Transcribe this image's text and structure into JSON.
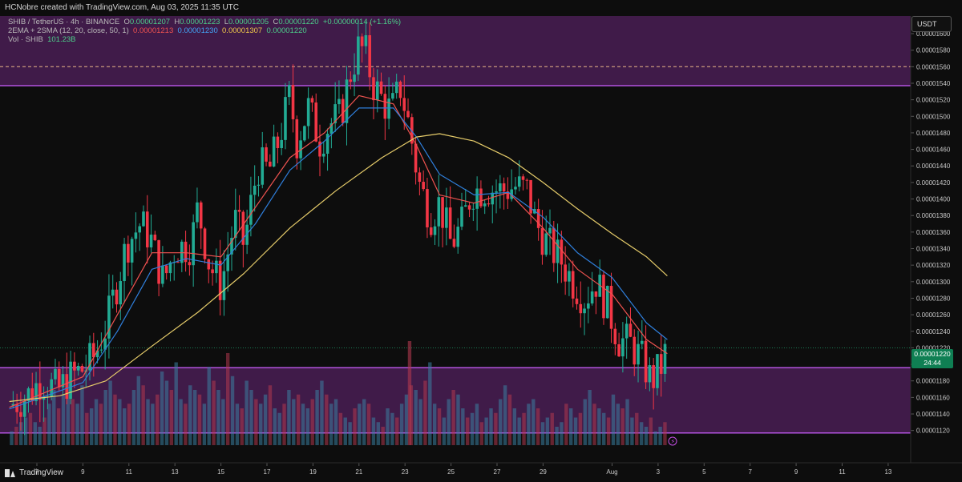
{
  "header": {
    "attribution": "HCNobre created with TradingView.com, Aug 03, 2025 11:35 UTC"
  },
  "legend": {
    "symbol": "SHIB / TetherUS · 4h · BINANCE",
    "o_label": "O",
    "o_value": "0.00001207",
    "h_label": "H",
    "h_value": "0.00001223",
    "l_label": "L",
    "l_value": "0.00001205",
    "c_label": "C",
    "c_value": "0.00001220",
    "change": "+0.00000014 (+1.16%)",
    "indicator": "2EMA + 2SMA (12, 20, close, 50, 1)",
    "ema12": "0.00001213",
    "ema20": "0.00001230",
    "sma50": "0.00001307",
    "sma_extra": "0.00001220",
    "vol_label": "Vol · SHIB",
    "vol_value": "101.23B"
  },
  "price_axis": {
    "currency": "USDT",
    "current_price": "0.00001220",
    "countdown": "24:44"
  },
  "branding": {
    "name": "TradingView"
  },
  "colors": {
    "up": "#22ab94",
    "down": "#f23645",
    "ema12": "#ef5350",
    "ema20": "#2f7fdc",
    "sma50": "#e6cc6a",
    "zone": "#4a1e55",
    "zone_border": "#b452e0",
    "background": "#0d0d0d"
  },
  "chart_data": {
    "type": "candlestick",
    "title": "SHIB / TetherUS · 4h · BINANCE",
    "ylim": [
      1.11e-05,
      1.6e-05
    ],
    "y_ticks": [
      "0.00001600",
      "0.00001580",
      "0.00001560",
      "0.00001540",
      "0.00001520",
      "0.00001500",
      "0.00001480",
      "0.00001460",
      "0.00001440",
      "0.00001420",
      "0.00001400",
      "0.00001380",
      "0.00001360",
      "0.00001340",
      "0.00001320",
      "0.00001300",
      "0.00001280",
      "0.00001260",
      "0.00001240",
      "0.00001220",
      "0.00001200",
      "0.00001180",
      "0.00001160",
      "0.00001140",
      "0.00001120"
    ],
    "x_ticks": [
      "7",
      "9",
      "11",
      "13",
      "15",
      "17",
      "19",
      "21",
      "23",
      "25",
      "27",
      "29",
      "Aug",
      "3",
      "5",
      "7",
      "9",
      "11",
      "13"
    ],
    "resistance_zone": [
      1.537e-05,
      1.6e-05
    ],
    "support_zone": [
      1.117e-05,
      1.196e-05
    ],
    "dashed_level": 1.56e-05,
    "price_path": [
      {
        "day": 5.8,
        "price": 1.15e-05
      },
      {
        "day": 6.6,
        "price": 1.162e-05
      },
      {
        "day": 7.2,
        "price": 1.182e-05
      },
      {
        "day": 7.9,
        "price": 1.168e-05
      },
      {
        "day": 8.5,
        "price": 1.185e-05
      },
      {
        "day": 9.1,
        "price": 1.196e-05
      },
      {
        "day": 9.5,
        "price": 1.21e-05
      },
      {
        "day": 10.0,
        "price": 1.245e-05
      },
      {
        "day": 10.5,
        "price": 1.3e-05
      },
      {
        "day": 10.9,
        "price": 1.345e-05
      },
      {
        "day": 11.5,
        "price": 1.37e-05
      },
      {
        "day": 11.9,
        "price": 1.355e-05
      },
      {
        "day": 12.5,
        "price": 1.3e-05
      },
      {
        "day": 13.0,
        "price": 1.34e-05
      },
      {
        "day": 13.7,
        "price": 1.345e-05
      },
      {
        "day": 14.0,
        "price": 1.39e-05
      },
      {
        "day": 14.5,
        "price": 1.32e-05
      },
      {
        "day": 15.0,
        "price": 1.295e-05
      },
      {
        "day": 15.6,
        "price": 1.375e-05
      },
      {
        "day": 16.0,
        "price": 1.345e-05
      },
      {
        "day": 16.6,
        "price": 1.44e-05
      },
      {
        "day": 17.1,
        "price": 1.435e-05
      },
      {
        "day": 17.5,
        "price": 1.47e-05
      },
      {
        "day": 18.0,
        "price": 1.525e-05
      },
      {
        "day": 18.3,
        "price": 1.47e-05
      },
      {
        "day": 18.8,
        "price": 1.51e-05
      },
      {
        "day": 19.3,
        "price": 1.47e-05
      },
      {
        "day": 19.7,
        "price": 1.49e-05
      },
      {
        "day": 20.2,
        "price": 1.5e-05
      },
      {
        "day": 20.6,
        "price": 1.55e-05
      },
      {
        "day": 21.0,
        "price": 1.585e-05
      },
      {
        "day": 21.3,
        "price": 1.575e-05
      },
      {
        "day": 21.6,
        "price": 1.54e-05
      },
      {
        "day": 22.0,
        "price": 1.52e-05
      },
      {
        "day": 22.4,
        "price": 1.505e-05
      },
      {
        "day": 22.8,
        "price": 1.535e-05
      },
      {
        "day": 23.2,
        "price": 1.485e-05
      },
      {
        "day": 23.6,
        "price": 1.42e-05
      },
      {
        "day": 24.1,
        "price": 1.38e-05
      },
      {
        "day": 24.5,
        "price": 1.395e-05
      },
      {
        "day": 25.0,
        "price": 1.345e-05
      },
      {
        "day": 25.5,
        "price": 1.37e-05
      },
      {
        "day": 25.9,
        "price": 1.41e-05
      },
      {
        "day": 26.6,
        "price": 1.413e-05
      },
      {
        "day": 27.2,
        "price": 1.41e-05
      },
      {
        "day": 27.8,
        "price": 1.415e-05
      },
      {
        "day": 28.3,
        "price": 1.41e-05
      },
      {
        "day": 28.7,
        "price": 1.37e-05
      },
      {
        "day": 29.2,
        "price": 1.345e-05
      },
      {
        "day": 29.8,
        "price": 1.325e-05
      },
      {
        "day": 30.3,
        "price": 1.3e-05
      },
      {
        "day": 30.8,
        "price": 1.28e-05
      },
      {
        "day": 31.3,
        "price": 1.3e-05
      },
      {
        "day": 31.8,
        "price": 1.27e-05
      },
      {
        "day": 32.3,
        "price": 1.23e-05
      },
      {
        "day": 32.8,
        "price": 1.225e-05
      },
      {
        "day": 33.3,
        "price": 1.205e-05
      },
      {
        "day": 33.7,
        "price": 1.18e-05
      },
      {
        "day": 34.1,
        "price": 1.195e-05
      },
      {
        "day": 34.4,
        "price": 1.22e-05
      }
    ],
    "series": [
      {
        "name": "EMA 12",
        "values": [
          {
            "day": 5.8,
            "price": 1.148e-05
          },
          {
            "day": 9.0,
            "price": 1.185e-05
          },
          {
            "day": 10.5,
            "price": 1.26e-05
          },
          {
            "day": 12.0,
            "price": 1.335e-05
          },
          {
            "day": 13.5,
            "price": 1.335e-05
          },
          {
            "day": 15.0,
            "price": 1.33e-05
          },
          {
            "day": 16.5,
            "price": 1.39e-05
          },
          {
            "day": 18.0,
            "price": 1.45e-05
          },
          {
            "day": 19.5,
            "price": 1.48e-05
          },
          {
            "day": 21.0,
            "price": 1.525e-05
          },
          {
            "day": 22.5,
            "price": 1.515e-05
          },
          {
            "day": 23.5,
            "price": 1.465e-05
          },
          {
            "day": 24.5,
            "price": 1.405e-05
          },
          {
            "day": 26.0,
            "price": 1.395e-05
          },
          {
            "day": 27.5,
            "price": 1.408e-05
          },
          {
            "day": 29.0,
            "price": 1.365e-05
          },
          {
            "day": 30.5,
            "price": 1.315e-05
          },
          {
            "day": 32.0,
            "price": 1.285e-05
          },
          {
            "day": 33.5,
            "price": 1.23e-05
          },
          {
            "day": 34.4,
            "price": 1.213e-05
          }
        ]
      },
      {
        "name": "EMA 20",
        "values": [
          {
            "day": 5.8,
            "price": 1.146e-05
          },
          {
            "day": 9.0,
            "price": 1.178e-05
          },
          {
            "day": 10.5,
            "price": 1.24e-05
          },
          {
            "day": 12.0,
            "price": 1.315e-05
          },
          {
            "day": 13.5,
            "price": 1.328e-05
          },
          {
            "day": 15.0,
            "price": 1.32e-05
          },
          {
            "day": 16.5,
            "price": 1.37e-05
          },
          {
            "day": 18.0,
            "price": 1.435e-05
          },
          {
            "day": 19.5,
            "price": 1.47e-05
          },
          {
            "day": 21.0,
            "price": 1.51e-05
          },
          {
            "day": 22.5,
            "price": 1.51e-05
          },
          {
            "day": 23.5,
            "price": 1.475e-05
          },
          {
            "day": 24.5,
            "price": 1.43e-05
          },
          {
            "day": 26.0,
            "price": 1.405e-05
          },
          {
            "day": 27.5,
            "price": 1.408e-05
          },
          {
            "day": 29.0,
            "price": 1.378e-05
          },
          {
            "day": 30.5,
            "price": 1.335e-05
          },
          {
            "day": 32.0,
            "price": 1.305e-05
          },
          {
            "day": 33.5,
            "price": 1.25e-05
          },
          {
            "day": 34.4,
            "price": 1.23e-05
          }
        ]
      },
      {
        "name": "SMA 50",
        "values": [
          {
            "day": 5.8,
            "price": 1.155e-05
          },
          {
            "day": 8.0,
            "price": 1.162e-05
          },
          {
            "day": 10.0,
            "price": 1.18e-05
          },
          {
            "day": 12.0,
            "price": 1.222e-05
          },
          {
            "day": 14.0,
            "price": 1.263e-05
          },
          {
            "day": 16.0,
            "price": 1.31e-05
          },
          {
            "day": 18.0,
            "price": 1.365e-05
          },
          {
            "day": 20.0,
            "price": 1.41e-05
          },
          {
            "day": 22.0,
            "price": 1.45e-05
          },
          {
            "day": 23.5,
            "price": 1.475e-05
          },
          {
            "day": 24.5,
            "price": 1.479e-05
          },
          {
            "day": 26.0,
            "price": 1.47e-05
          },
          {
            "day": 27.5,
            "price": 1.45e-05
          },
          {
            "day": 29.0,
            "price": 1.42e-05
          },
          {
            "day": 30.5,
            "price": 1.388e-05
          },
          {
            "day": 32.0,
            "price": 1.358e-05
          },
          {
            "day": 33.5,
            "price": 1.33e-05
          },
          {
            "day": 34.4,
            "price": 1.307e-05
          }
        ]
      }
    ],
    "volume": [
      3,
      4,
      5,
      6,
      7,
      5,
      4,
      6,
      9,
      12,
      8,
      11,
      14,
      10,
      9,
      13,
      7,
      8,
      10,
      9,
      12,
      14,
      11,
      10,
      8,
      9,
      12,
      15,
      13,
      10,
      9,
      11,
      16,
      14,
      12,
      18,
      10,
      9,
      13,
      12,
      11,
      9,
      17,
      14,
      12,
      10,
      20,
      15,
      9,
      8,
      14,
      12,
      10,
      9,
      11,
      13,
      8,
      7,
      9,
      12,
      10,
      11,
      9,
      8,
      10,
      12,
      14,
      11,
      9,
      10,
      7,
      6,
      5,
      8,
      9,
      10,
      9,
      6,
      5,
      4,
      8,
      7,
      6,
      9,
      11,
      13,
      12,
      10,
      14,
      18,
      9,
      8,
      6,
      10,
      12,
      11,
      8,
      6,
      7,
      9,
      5,
      6,
      8,
      7,
      10,
      13,
      11,
      8,
      6,
      7,
      9,
      10,
      8,
      5,
      6,
      7,
      4,
      5,
      9,
      8,
      6,
      7,
      10,
      12,
      9,
      8,
      7,
      6,
      11,
      9,
      8,
      10,
      6,
      7,
      5,
      4,
      6,
      3,
      4,
      5
    ]
  }
}
